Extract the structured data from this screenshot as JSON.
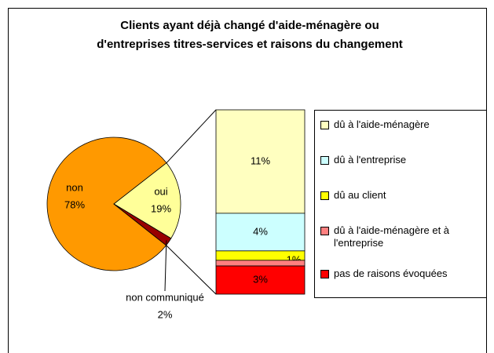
{
  "chart_data": {
    "type": "bar-of-pie",
    "title": [
      "Clients ayant déjà changé d'aide-ménagère ou",
      "d'entreprises titres-services et raisons du changement"
    ],
    "pie": {
      "categories": [
        "non",
        "oui",
        "non communiqué"
      ],
      "values": [
        78,
        19,
        2
      ],
      "value_labels": [
        "78%",
        "19%",
        "2%"
      ],
      "colors": [
        "#FF9900",
        "#FFFF99",
        "#990000"
      ]
    },
    "bar": {
      "categories": [
        "dû à l'aide-ménagère",
        "dû à l'entreprise",
        "dû au client",
        "dû à l'aide-ménagère et à l'entreprise",
        "pas de raisons évoquées"
      ],
      "values": [
        11,
        4,
        1,
        0.6,
        3
      ],
      "value_labels": [
        "11%",
        "4%",
        "1%",
        null,
        "3%"
      ],
      "colors": [
        "#FFFFC0",
        "#CCFFFF",
        "#FFFF00",
        "#FF8080",
        "#FF0000"
      ]
    }
  }
}
